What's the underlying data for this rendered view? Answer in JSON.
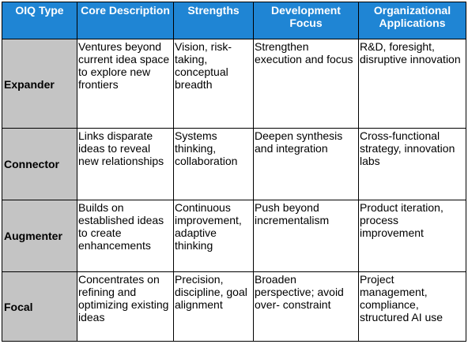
{
  "table": {
    "headers": [
      "OIQ Type",
      "Core Description",
      "Strengths",
      "Development Focus",
      "Organizational Applications"
    ],
    "rows": [
      [
        "Expander",
        "Ventures beyond current idea space to explore new frontiers",
        "Vision, risk-taking, conceptual breadth",
        "Strengthen execution and focus",
        "R&D, foresight, disruptive innovation"
      ],
      [
        "Connector",
        "Links disparate ideas to reveal new relationships",
        "Systems thinking, collaboration",
        "Deepen synthesis and integration",
        "Cross-functional strategy, innovation labs"
      ],
      [
        "Augmenter",
        "Builds on established ideas to create enhancements",
        "Continuous improvement, adaptive thinking",
        "Push beyond incrementalism",
        "Product iteration, process improvement"
      ],
      [
        "Focal",
        "Concentrates on refining and optimizing existing ideas",
        "Precision, discipline, goal alignment",
        "Broaden perspective; avoid over- constraint",
        "Project management, compliance, structured AI use"
      ]
    ]
  },
  "colors": {
    "header_bg": "#1f85d4",
    "header_text": "#ffffff",
    "type_col_bg": "#c4c4c4"
  }
}
